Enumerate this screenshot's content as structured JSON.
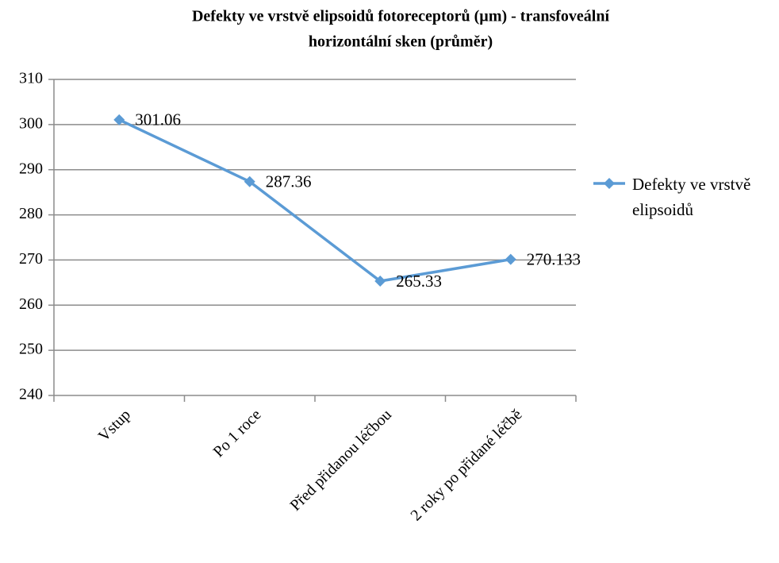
{
  "chart_data": {
    "type": "line",
    "title": [
      "Defekty ve vrstvě elipsoidů fotoreceptorů (µm) - transfoveální",
      "horizontální sken (průměr)"
    ],
    "categories": [
      "Vstup",
      "Po 1 roce",
      "Před přidanou léčbou",
      "2 roky po přidané léčbě"
    ],
    "series": [
      {
        "name": "Defekty ve vrstvě elipsoidů",
        "color": "#5b9bd5",
        "values": [
          301.06,
          287.36,
          265.33,
          270.133
        ]
      }
    ],
    "ylim": [
      240,
      310
    ],
    "yticks": [
      240,
      250,
      260,
      270,
      280,
      290,
      300,
      310
    ],
    "grid": true,
    "legend": "right"
  }
}
